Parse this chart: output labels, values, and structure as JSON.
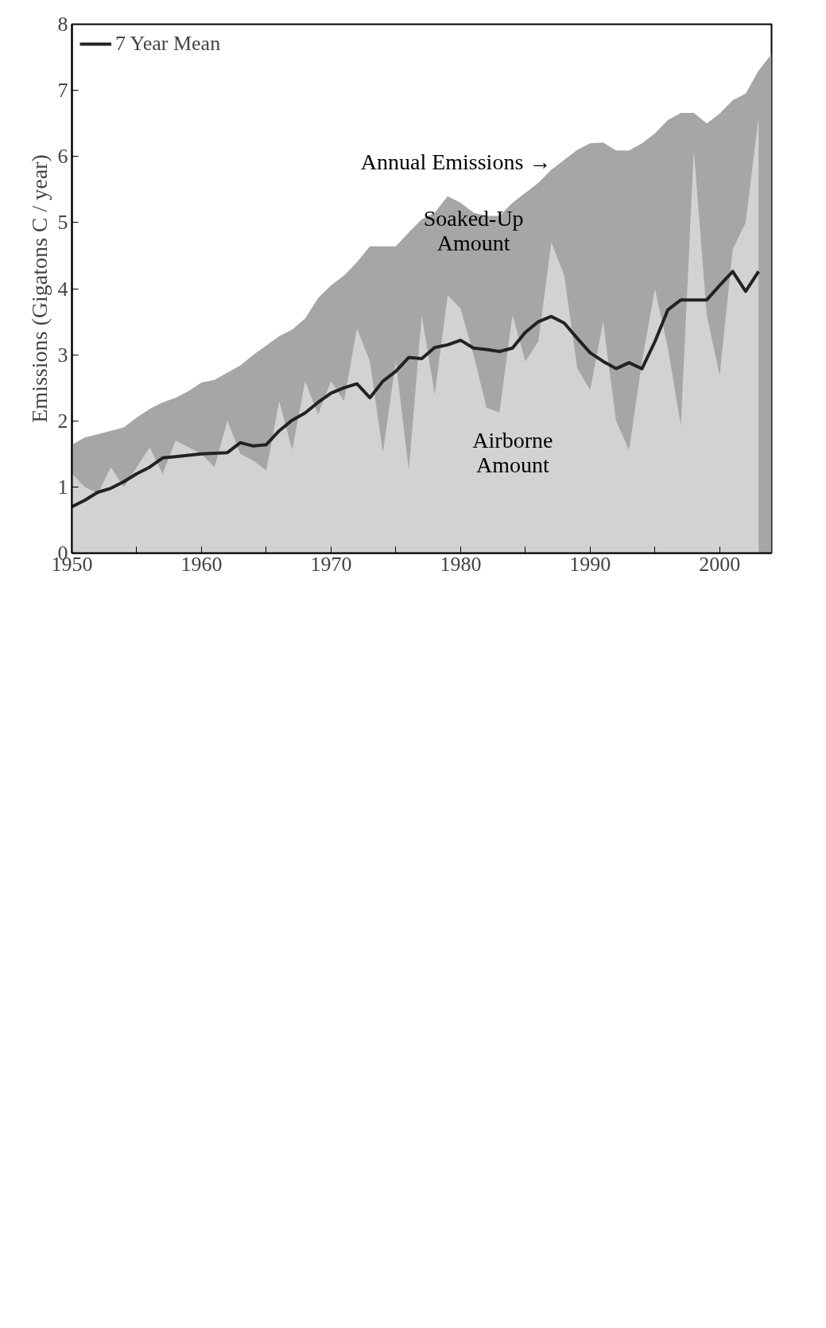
{
  "chart_data": {
    "type": "area",
    "ylabel": "Emissions (Gigatons C / year)",
    "xlim": [
      1950,
      2004
    ],
    "xticks": [
      1950,
      {
        "value": 1955,
        "label": null
      },
      1960,
      {
        "value": 1965,
        "label": null
      },
      1970,
      {
        "value": 1975,
        "label": null
      },
      1980,
      {
        "value": 1985,
        "label": null
      },
      1990,
      {
        "value": 1995,
        "label": null
      },
      2000
    ],
    "ylim": [
      0,
      8
    ],
    "yticks": [
      0,
      1,
      2,
      3,
      4,
      5,
      6,
      7,
      8
    ],
    "grid": false,
    "legend": "top left",
    "series": [
      {
        "color": "#a6a6a6",
        "x": [
          1950,
          1951,
          1952,
          1953,
          1954,
          1955,
          1956,
          1957,
          1958,
          1959,
          1960,
          1961,
          1962,
          1963,
          1964,
          1965,
          1966,
          1967,
          1968,
          1969,
          1970,
          1971,
          1972,
          1973,
          1974,
          1975,
          1976,
          1977,
          1978,
          1979,
          1980,
          1981,
          1982,
          1983,
          1984,
          1985,
          1986,
          1987,
          1988,
          1989,
          1990,
          1991,
          1992,
          1993,
          1994,
          1995,
          1996,
          1997,
          1998,
          1999,
          2000,
          2001,
          2002,
          2003,
          2004
        ],
        "values": [
          1.64,
          1.75,
          1.8,
          1.85,
          1.9,
          2.05,
          2.18,
          2.28,
          2.35,
          2.45,
          2.58,
          2.62,
          2.73,
          2.84,
          3.0,
          3.14,
          3.28,
          3.38,
          3.55,
          3.86,
          4.05,
          4.2,
          4.4,
          4.64,
          4.64,
          4.64,
          4.85,
          5.05,
          5.15,
          5.4,
          5.3,
          5.15,
          5.1,
          5.1,
          5.3,
          5.45,
          5.6,
          5.8,
          5.95,
          6.1,
          6.2,
          6.21,
          6.09,
          6.09,
          6.2,
          6.35,
          6.55,
          6.66,
          6.66,
          6.5,
          6.65,
          6.85,
          6.95,
          7.3,
          7.55
        ]
      },
      {
        "color": "#d2d2d2",
        "x": [
          1950,
          1951,
          1952,
          1953,
          1954,
          1955,
          1956,
          1957,
          1958,
          1959,
          1960,
          1961,
          1962,
          1963,
          1964,
          1965,
          1966,
          1967,
          1968,
          1969,
          1970,
          1971,
          1972,
          1973,
          1974,
          1975,
          1976,
          1977,
          1978,
          1979,
          1980,
          1981,
          1982,
          1983,
          1984,
          1985,
          1986,
          1987,
          1988,
          1989,
          1990,
          1991,
          1992,
          1993,
          1994,
          1995,
          1996,
          1997,
          1998,
          1999,
          2000,
          2001,
          2002,
          2003
        ],
        "values": [
          1.2,
          1.0,
          0.9,
          1.3,
          1.0,
          1.3,
          1.6,
          1.2,
          1.7,
          1.6,
          1.5,
          1.3,
          2.0,
          1.5,
          1.4,
          1.25,
          2.3,
          1.56,
          2.6,
          2.1,
          2.6,
          2.3,
          3.4,
          2.9,
          1.52,
          2.9,
          1.25,
          3.6,
          2.4,
          3.9,
          3.7,
          3.0,
          2.2,
          2.13,
          3.6,
          2.9,
          3.2,
          4.7,
          4.2,
          2.8,
          2.47,
          3.5,
          2.0,
          1.56,
          2.9,
          4.0,
          3.1,
          1.93,
          6.1,
          3.6,
          2.69,
          4.6,
          5.0,
          6.6
        ]
      },
      {
        "type": "line",
        "name": "7 Year Mean",
        "color": "#222222",
        "x": [
          1950,
          1951,
          1952,
          1953,
          1954,
          1955,
          1956,
          1957,
          1958,
          1959,
          1960,
          1961,
          1962,
          1963,
          1964,
          1965,
          1966,
          1967,
          1968,
          1969,
          1970,
          1971,
          1972,
          1973,
          1974,
          1975,
          1976,
          1977,
          1978,
          1979,
          1980,
          1981,
          1982,
          1983,
          1984,
          1985,
          1986,
          1987,
          1988,
          1989,
          1990,
          1991,
          1992,
          1993,
          1994,
          1995,
          1996,
          1997,
          1998,
          1999,
          2000,
          2001,
          2002,
          2003
        ],
        "values": [
          0.7,
          0.8,
          0.92,
          0.98,
          1.08,
          1.2,
          1.3,
          1.44,
          1.46,
          1.48,
          1.5,
          1.51,
          1.52,
          1.67,
          1.62,
          1.64,
          1.85,
          2.01,
          2.12,
          2.28,
          2.42,
          2.5,
          2.56,
          2.35,
          2.6,
          2.75,
          2.96,
          2.94,
          3.11,
          3.15,
          3.22,
          3.1,
          3.08,
          3.05,
          3.1,
          3.34,
          3.5,
          3.58,
          3.48,
          3.25,
          3.03,
          2.9,
          2.79,
          2.88,
          2.79,
          3.2,
          3.68,
          3.83,
          3.83,
          3.83,
          4.05,
          4.26,
          3.96,
          4.26
        ]
      }
    ],
    "annotations": [
      "Annual Emissions →",
      "Soaked-Up\nAmount",
      "Airborne\nAmount"
    ]
  }
}
